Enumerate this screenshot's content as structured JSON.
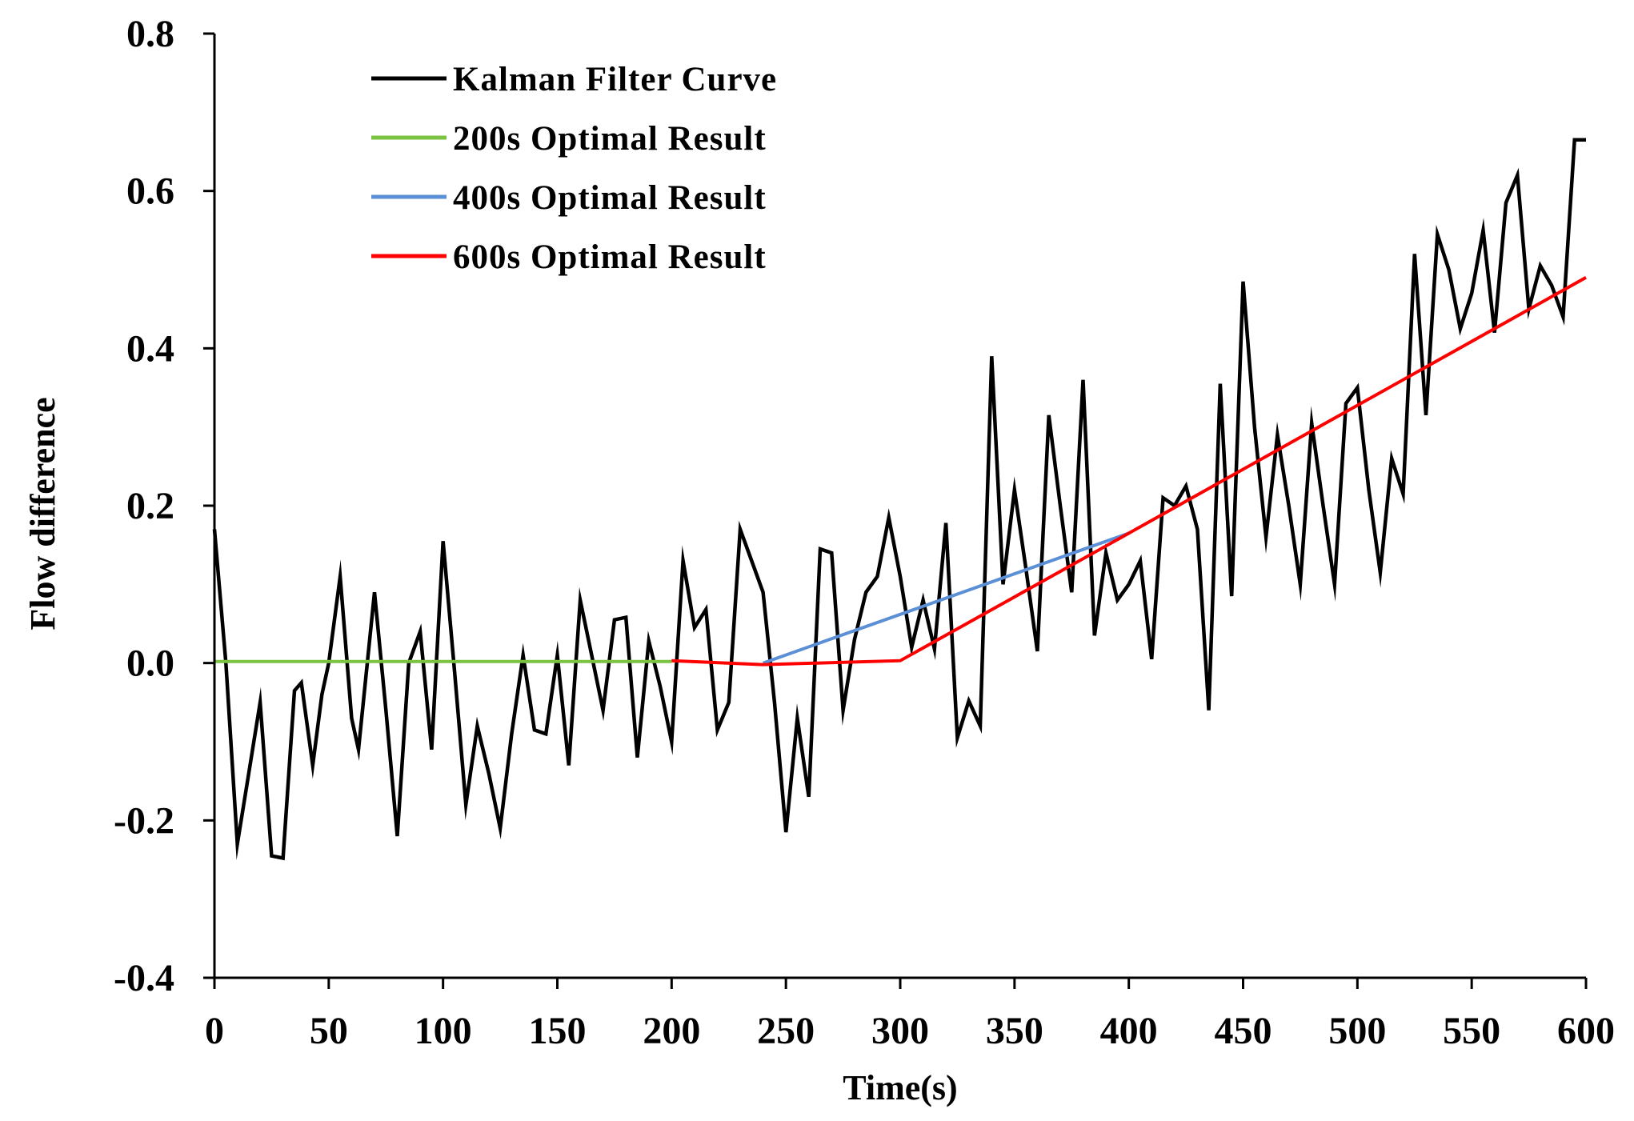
{
  "chart_data": {
    "type": "line",
    "title": "",
    "xlabel": "Time(s)",
    "ylabel": "Flow difference",
    "xlim": [
      0,
      600
    ],
    "ylim": [
      -0.4,
      0.8
    ],
    "x_ticks": [
      0,
      50,
      100,
      150,
      200,
      250,
      300,
      350,
      400,
      450,
      500,
      550,
      600
    ],
    "y_ticks": [
      -0.4,
      -0.2,
      0.0,
      0.2,
      0.4,
      0.6,
      0.8
    ],
    "y_tick_labels": [
      "-0.4",
      "-0.2",
      "0.0",
      "0.2",
      "0.4",
      "0.6",
      "0.8"
    ],
    "x_tick_labels": [
      "0",
      "50",
      "100",
      "150",
      "200",
      "250",
      "300",
      "350",
      "400",
      "450",
      "500",
      "550",
      "600"
    ],
    "grid": false,
    "legend_position": "top-left",
    "series": [
      {
        "name": "Kalman Filter Curve",
        "color": "#000000",
        "x": [
          0,
          5,
          10,
          15,
          20,
          25,
          30,
          35,
          38,
          43,
          47,
          50,
          55,
          60,
          63,
          70,
          75,
          80,
          85,
          90,
          95,
          100,
          105,
          110,
          115,
          120,
          125,
          130,
          135,
          140,
          145,
          150,
          155,
          160,
          165,
          170,
          175,
          180,
          185,
          190,
          195,
          200,
          205,
          210,
          215,
          220,
          225,
          230,
          235,
          240,
          245,
          250,
          255,
          260,
          265,
          270,
          275,
          280,
          285,
          290,
          295,
          300,
          305,
          310,
          315,
          320,
          325,
          330,
          335,
          340,
          345,
          350,
          355,
          360,
          365,
          370,
          375,
          380,
          385,
          390,
          395,
          400,
          405,
          410,
          415,
          420,
          425,
          430,
          435,
          440,
          445,
          450,
          455,
          460,
          465,
          470,
          475,
          480,
          485,
          490,
          495,
          500,
          505,
          510,
          515,
          520,
          525,
          530,
          535,
          540,
          545,
          550,
          555,
          560,
          565,
          570,
          575,
          580,
          585,
          590,
          595,
          600
        ],
        "values": [
          0.17,
          0.0,
          -0.23,
          -0.14,
          -0.05,
          -0.245,
          -0.248,
          -0.035,
          -0.025,
          -0.13,
          -0.04,
          0.0,
          0.11,
          -0.07,
          -0.11,
          0.09,
          -0.06,
          -0.22,
          0.0,
          0.04,
          -0.11,
          0.155,
          -0.01,
          -0.18,
          -0.08,
          -0.14,
          -0.21,
          -0.09,
          0.01,
          -0.085,
          -0.09,
          0.01,
          -0.13,
          0.08,
          0.01,
          -0.06,
          0.055,
          0.058,
          -0.12,
          0.028,
          -0.03,
          -0.1,
          0.13,
          0.045,
          0.068,
          -0.085,
          -0.05,
          0.17,
          0.13,
          0.09,
          -0.05,
          -0.215,
          -0.07,
          -0.17,
          0.145,
          0.14,
          -0.06,
          0.03,
          0.09,
          0.11,
          0.185,
          0.11,
          0.02,
          0.08,
          0.018,
          0.178,
          -0.095,
          -0.048,
          -0.08,
          0.39,
          0.1,
          0.22,
          0.12,
          0.015,
          0.315,
          0.2,
          0.09,
          0.36,
          0.035,
          0.14,
          0.08,
          0.1,
          0.13,
          0.005,
          0.21,
          0.2,
          0.225,
          0.17,
          -0.06,
          0.355,
          0.085,
          0.485,
          0.3,
          0.16,
          0.29,
          0.2,
          0.1,
          0.305,
          0.2,
          0.1,
          0.33,
          0.35,
          0.22,
          0.115,
          0.26,
          0.215,
          0.52,
          0.315,
          0.545,
          0.5,
          0.425,
          0.47,
          0.55,
          0.42,
          0.585,
          0.62,
          0.45,
          0.505,
          0.48,
          0.44,
          0.665,
          0.665
        ]
      },
      {
        "name": "200s Optimal Result",
        "color": "#7cc242",
        "x": [
          0,
          200
        ],
        "values": [
          0.002,
          0.002
        ]
      },
      {
        "name": "400s Optimal Result",
        "color": "#5b8fd6",
        "x": [
          240,
          400
        ],
        "values": [
          0.0,
          0.165
        ]
      },
      {
        "name": "600s Optimal Result",
        "color": "#ff0000",
        "x": [
          200,
          240,
          300,
          400,
          600
        ],
        "values": [
          0.003,
          -0.002,
          0.003,
          0.165,
          0.49
        ]
      }
    ]
  }
}
